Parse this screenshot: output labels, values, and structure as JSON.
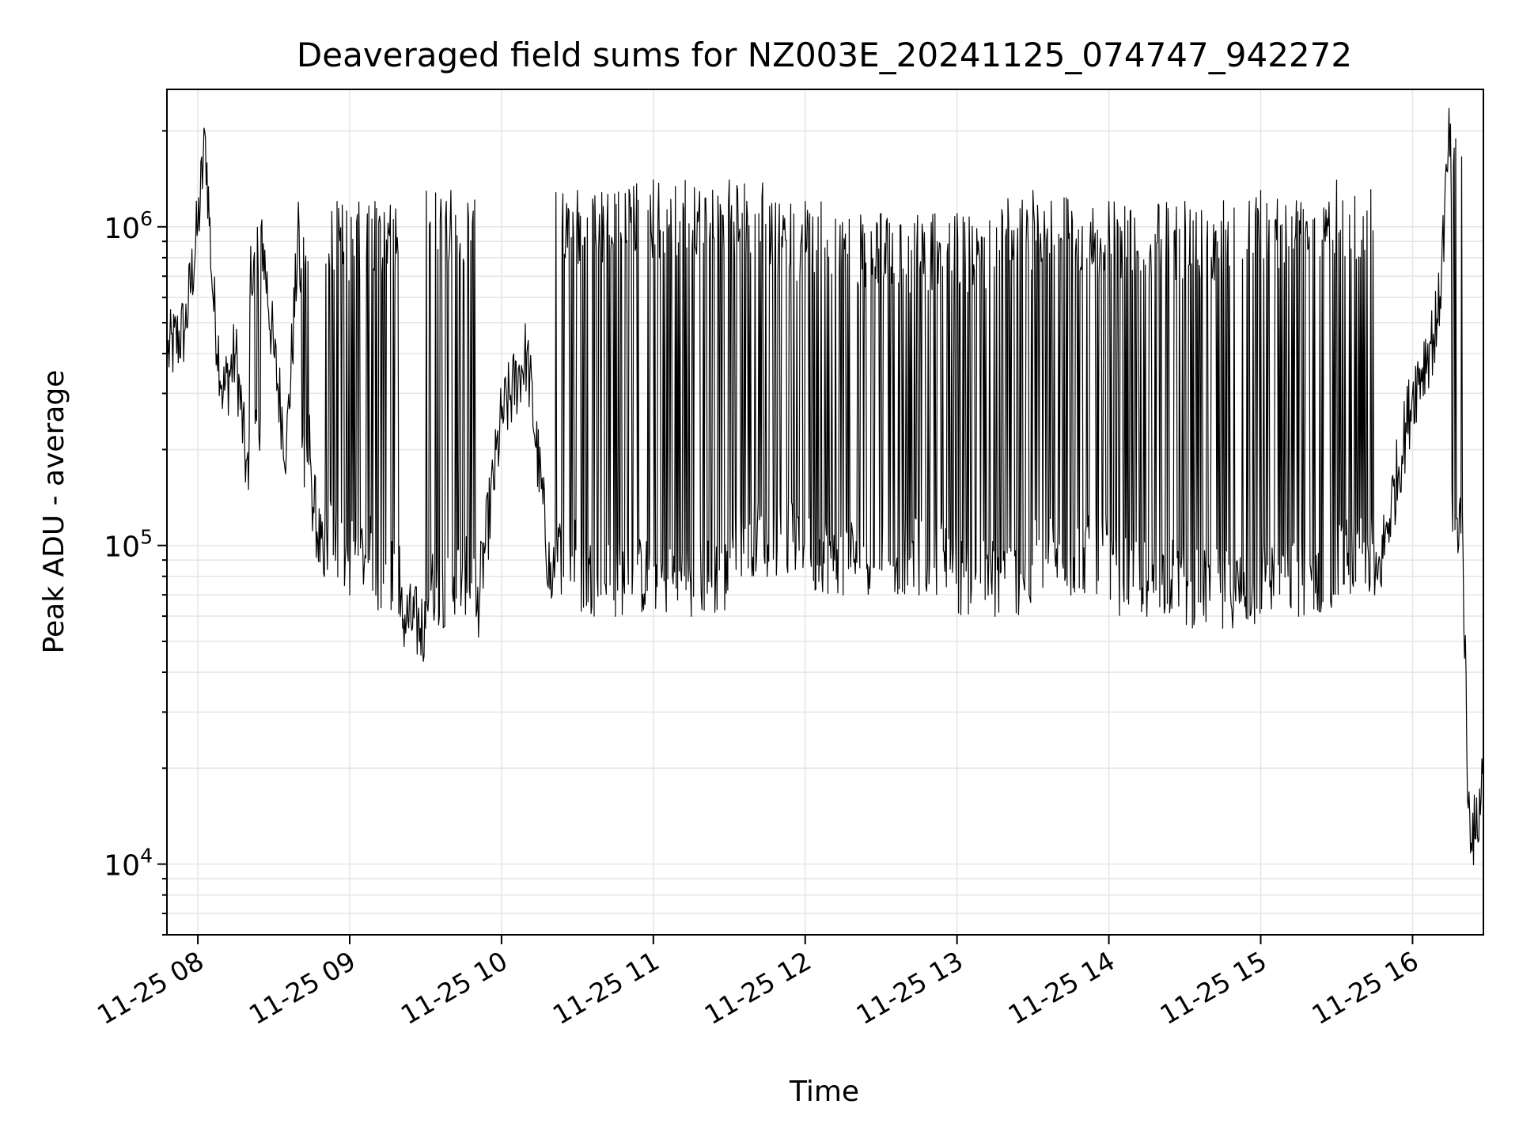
{
  "chart_data": {
    "type": "line",
    "title": "Deaveraged field sums for NZ003E_20241125_074747_942272",
    "xlabel": "Time",
    "ylabel": "Peak ADU - average",
    "yscale": "log",
    "ylim": [
      6000,
      2700000
    ],
    "xlim": [
      "2024-11-25 07:47:47",
      "2024-11-25 16:28:00"
    ],
    "grid": true,
    "x_ticks": [
      "11-25 08",
      "11-25 09",
      "11-25 10",
      "11-25 11",
      "11-25 12",
      "11-25 13",
      "11-25 14",
      "11-25 15",
      "11-25 16"
    ],
    "y_ticks": [
      {
        "base": "10",
        "exp": "4",
        "value": 10000
      },
      {
        "base": "10",
        "exp": "5",
        "value": 100000
      },
      {
        "base": "10",
        "exp": "6",
        "value": 1000000
      }
    ],
    "series": [
      {
        "color": "#000000",
        "points": [
          [
            "2024-11-25 07:48",
            400000
          ],
          [
            "2024-11-25 07:55",
            480000
          ],
          [
            "2024-11-25 08:00",
            1000000
          ],
          [
            "2024-11-25 08:03",
            1900000
          ],
          [
            "2024-11-25 08:06",
            600000
          ],
          [
            "2024-11-25 08:10",
            300000
          ],
          [
            "2024-11-25 08:15",
            400000
          ],
          [
            "2024-11-25 08:20",
            150000
          ],
          [
            "2024-11-25 08:25",
            1000000
          ],
          [
            "2024-11-25 08:30",
            400000
          ],
          [
            "2024-11-25 08:35",
            200000
          ],
          [
            "2024-11-25 08:40",
            1000000
          ],
          [
            "2024-11-25 08:45",
            150000
          ],
          [
            "2024-11-25 08:50",
            80000
          ],
          [
            "2024-11-25 08:55",
            1200000
          ],
          [
            "2024-11-25 09:00",
            70000
          ],
          [
            "2024-11-25 09:10",
            1200000
          ],
          [
            "2024-11-25 09:20",
            60000
          ],
          [
            "2024-11-25 09:30",
            55000
          ],
          [
            "2024-11-25 09:40",
            1300000
          ],
          [
            "2024-11-25 09:50",
            60000
          ],
          [
            "2024-11-25 10:00",
            250000
          ],
          [
            "2024-11-25 10:10",
            400000
          ],
          [
            "2024-11-25 10:20",
            70000
          ],
          [
            "2024-11-25 10:30",
            1300000
          ],
          [
            "2024-11-25 10:45",
            60000
          ],
          [
            "2024-11-25 11:00",
            1400000
          ],
          [
            "2024-11-25 11:15",
            60000
          ],
          [
            "2024-11-25 11:30",
            1400000
          ],
          [
            "2024-11-25 11:45",
            80000
          ],
          [
            "2024-11-25 12:00",
            1200000
          ],
          [
            "2024-11-25 12:15",
            70000
          ],
          [
            "2024-11-25 12:30",
            1100000
          ],
          [
            "2024-11-25 12:45",
            70000
          ],
          [
            "2024-11-25 13:00",
            1100000
          ],
          [
            "2024-11-25 13:15",
            60000
          ],
          [
            "2024-11-25 13:30",
            1300000
          ],
          [
            "2024-11-25 13:45",
            70000
          ],
          [
            "2024-11-25 14:00",
            1200000
          ],
          [
            "2024-11-25 14:15",
            60000
          ],
          [
            "2024-11-25 14:30",
            1200000
          ],
          [
            "2024-11-25 14:45",
            55000
          ],
          [
            "2024-11-25 15:00",
            1300000
          ],
          [
            "2024-11-25 15:15",
            60000
          ],
          [
            "2024-11-25 15:30",
            1400000
          ],
          [
            "2024-11-25 15:45",
            70000
          ],
          [
            "2024-11-25 16:00",
            300000
          ],
          [
            "2024-11-25 16:10",
            500000
          ],
          [
            "2024-11-25 16:15",
            2100000
          ],
          [
            "2024-11-25 16:20",
            90000
          ],
          [
            "2024-11-25 16:22",
            15000
          ],
          [
            "2024-11-25 16:25",
            12000
          ],
          [
            "2024-11-25 16:28",
            20000
          ]
        ]
      }
    ]
  }
}
